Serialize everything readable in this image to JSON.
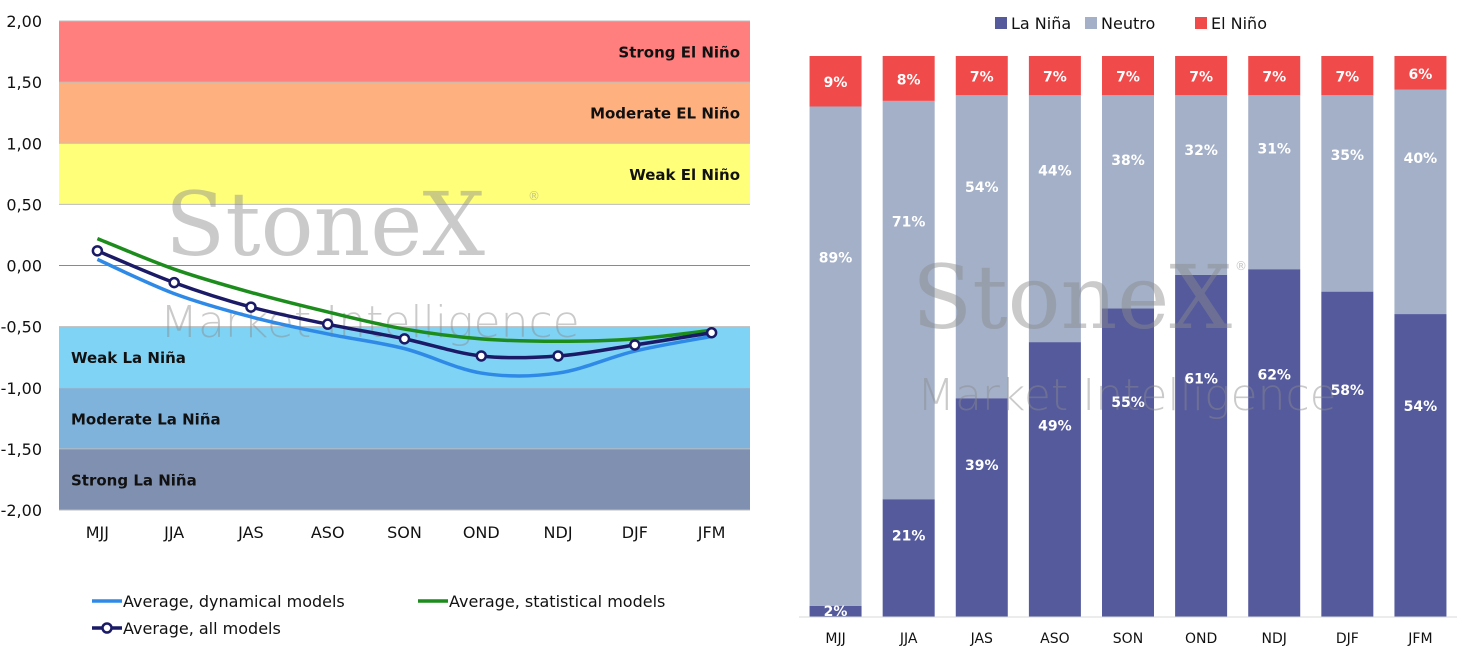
{
  "watermark": {
    "brand": "StoneX",
    "registered": "®",
    "subtitle": "Market Intelligence"
  },
  "chart_data": [
    {
      "type": "line",
      "categories": [
        "MJJ",
        "JJA",
        "JAS",
        "ASO",
        "SON",
        "OND",
        "NDJ",
        "DJF",
        "JFM"
      ],
      "y_ticks": [
        "2,00",
        "1,50",
        "1,00",
        "0,50",
        "0,00",
        "-0,50",
        "-1,00",
        "-1,50",
        "-2,00"
      ],
      "ylim": [
        -2.0,
        2.0
      ],
      "bands": [
        {
          "label": "Strong El Niño",
          "from": 1.5,
          "to": 2.0,
          "color": "#ff7f7f"
        },
        {
          "label": "Moderate EL Niño",
          "from": 1.0,
          "to": 1.5,
          "color": "#ffb07f"
        },
        {
          "label": "Weak El Niño",
          "from": 0.5,
          "to": 1.0,
          "color": "#ffff7a"
        },
        {
          "label": "Weak La Niña",
          "from": -1.0,
          "to": -0.5,
          "color": "#7fd3f5"
        },
        {
          "label": "Moderate La Niña",
          "from": -1.5,
          "to": -1.0,
          "color": "#7fb3dc"
        },
        {
          "label": "Strong La Niña",
          "from": -2.0,
          "to": -1.5,
          "color": "#7f90b0"
        }
      ],
      "series": [
        {
          "name": "Average, dynamical models",
          "color": "#2e8ae6",
          "values": [
            0.05,
            -0.23,
            -0.42,
            -0.56,
            -0.68,
            -0.88,
            -0.88,
            -0.7,
            -0.58
          ]
        },
        {
          "name": "Average, statistical models",
          "color": "#1c8c1c",
          "values": [
            0.22,
            -0.03,
            -0.22,
            -0.38,
            -0.52,
            -0.6,
            -0.62,
            -0.6,
            -0.53
          ]
        },
        {
          "name": "Average, all models",
          "color": "#1a1a66",
          "values": [
            0.12,
            -0.14,
            -0.34,
            -0.48,
            -0.6,
            -0.74,
            -0.74,
            -0.65,
            -0.55
          ],
          "markers": true
        }
      ]
    },
    {
      "type": "bar",
      "stacked": true,
      "categories": [
        "MJJ",
        "JJA",
        "JAS",
        "ASO",
        "SON",
        "OND",
        "NDJ",
        "DJF",
        "JFM"
      ],
      "series": [
        {
          "name": "La Niña",
          "color": "#545a9c",
          "values": [
            2,
            21,
            39,
            49,
            55,
            61,
            62,
            58,
            54
          ],
          "labels": [
            "2%",
            "21%",
            "39%",
            "49%",
            "55%",
            "61%",
            "62%",
            "58%",
            "54%"
          ]
        },
        {
          "name": "Neutro",
          "color": "#a3b0c8",
          "values": [
            89,
            71,
            54,
            44,
            38,
            32,
            31,
            35,
            40
          ],
          "labels": [
            "89%",
            "71%",
            "54%",
            "44%",
            "38%",
            "32%",
            "31%",
            "35%",
            "40%"
          ]
        },
        {
          "name": "El Niño",
          "color": "#f04a4a",
          "values": [
            9,
            8,
            7,
            7,
            7,
            7,
            7,
            7,
            6
          ],
          "labels": [
            "9%",
            "8%",
            "7%",
            "7%",
            "7%",
            "7%",
            "7%",
            "7%",
            "6%"
          ]
        }
      ],
      "legend_position": "top-center"
    }
  ]
}
